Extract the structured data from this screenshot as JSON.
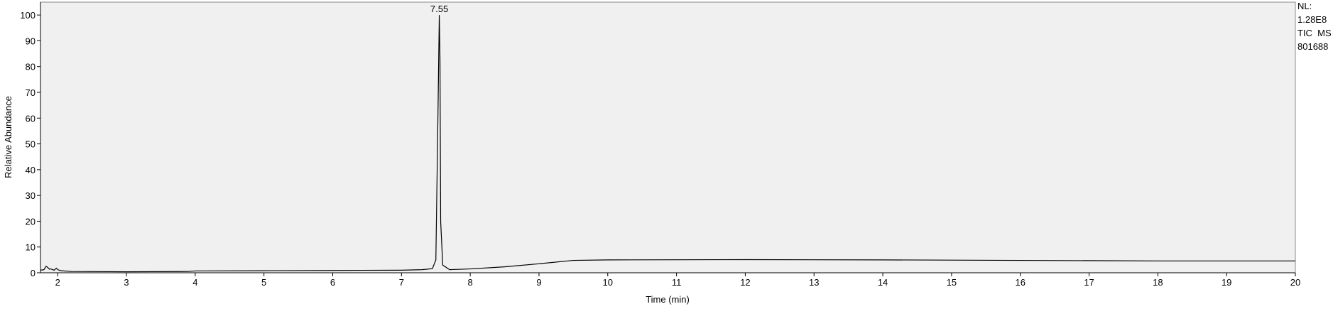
{
  "chart_data": {
    "type": "line",
    "xlabel": "Time (min)",
    "ylabel": "Relative Abundance",
    "x": [
      1.75,
      1.8,
      1.83,
      1.85,
      1.88,
      1.9,
      1.95,
      1.98,
      2.0,
      2.05,
      2.2,
      3,
      3.9,
      4,
      5,
      6,
      7,
      7.3,
      7.45,
      7.5,
      7.53,
      7.55,
      7.56,
      7.57,
      7.6,
      7.7,
      8,
      8.5,
      9,
      9.5,
      10,
      12,
      14,
      16,
      18,
      20
    ],
    "values": [
      1,
      1.2,
      2.5,
      2.2,
      1.4,
      1.5,
      1,
      1.8,
      1.2,
      0.8,
      0.5,
      0.4,
      0.5,
      0.7,
      0.8,
      0.9,
      1,
      1.2,
      1.6,
      5,
      60,
      100,
      83,
      20,
      3,
      1.2,
      1.5,
      2.3,
      3.5,
      4.8,
      5,
      5.1,
      5,
      4.8,
      4.6,
      4.6
    ],
    "color": "#000000",
    "xlim": [
      1.75,
      20
    ],
    "xticks": [
      2,
      3,
      4,
      5,
      6,
      7,
      8,
      9,
      10,
      11,
      12,
      13,
      14,
      15,
      16,
      17,
      18,
      19,
      20
    ],
    "ylim": [
      0,
      105
    ],
    "yticks": [
      0,
      10,
      20,
      30,
      40,
      50,
      60,
      70,
      80,
      90,
      100
    ],
    "annotations": [
      {
        "label": "7.55",
        "x": 7.55,
        "y": 100
      }
    ],
    "side_text": [
      "NL:",
      "1.28E8",
      "TIC  MS",
      "801688"
    ]
  }
}
